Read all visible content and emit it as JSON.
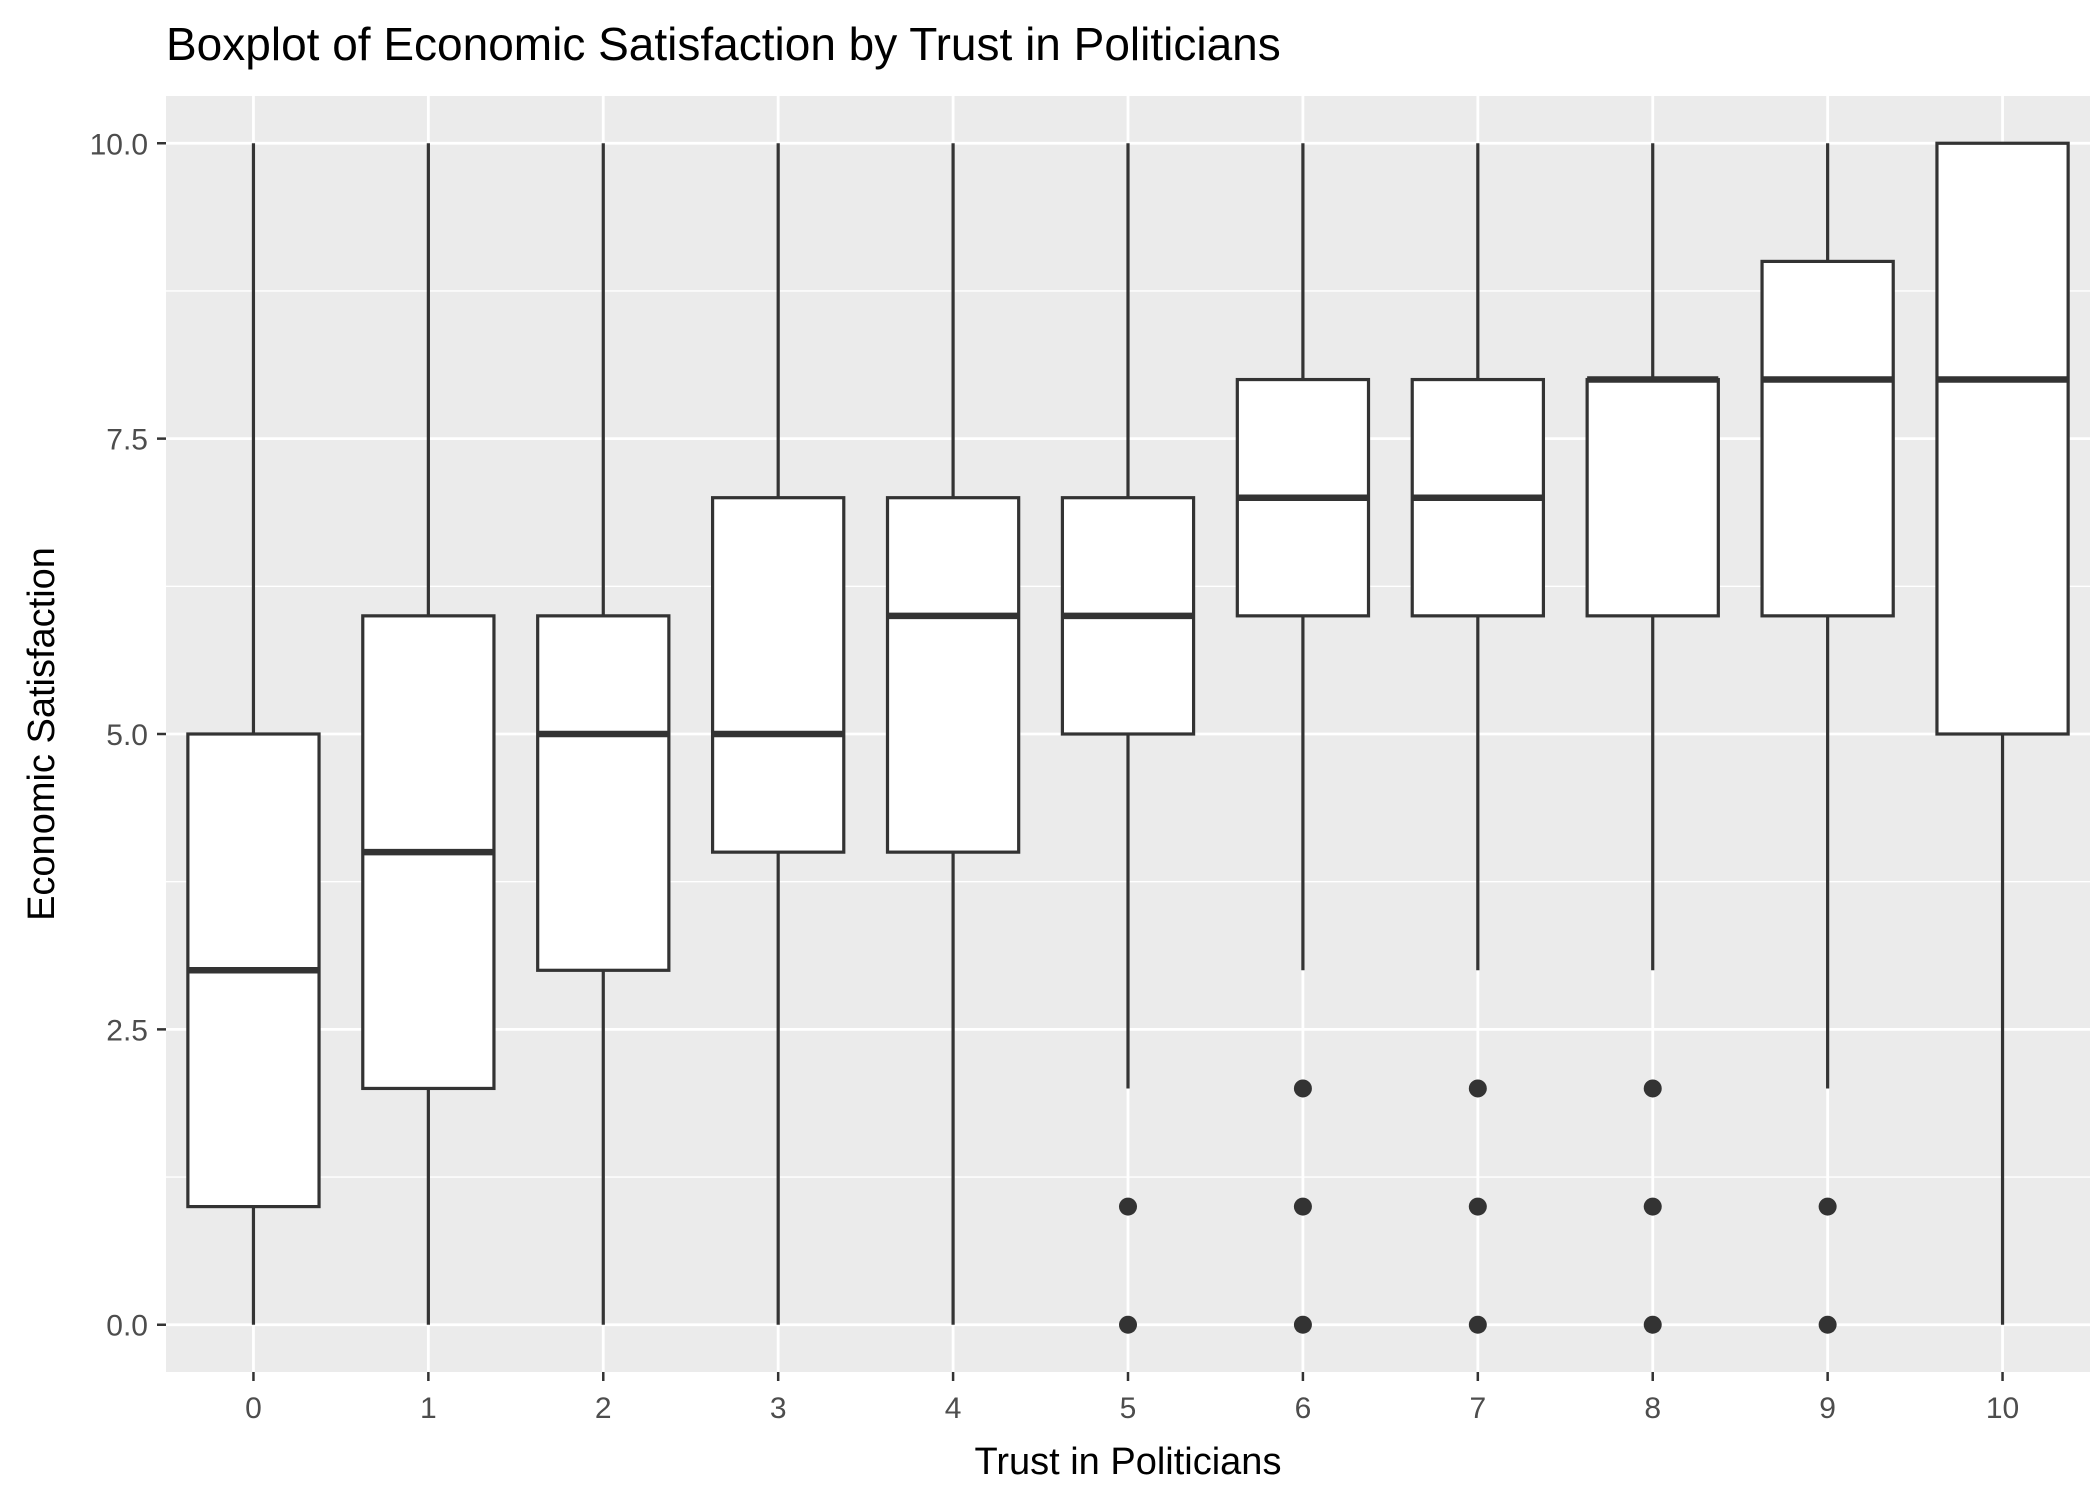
{
  "chart_data": {
    "type": "box",
    "title": "Boxplot of Economic Satisfaction by  Trust in Politicians",
    "xlabel": "Trust in Politicians",
    "ylabel": "Economic Satisfaction",
    "categories": [
      "0",
      "1",
      "2",
      "3",
      "4",
      "5",
      "6",
      "7",
      "8",
      "9",
      "10"
    ],
    "ylim": [
      -0.4,
      10.4
    ],
    "y_ticks": [
      0.0,
      2.5,
      5.0,
      7.5,
      10.0
    ],
    "y_tick_labels": [
      "0.0",
      "2.5",
      "5.0",
      "7.5",
      "10.0"
    ],
    "grid": true,
    "legend": "none",
    "colors": {
      "panel": "#ebebeb",
      "grid": "#ffffff",
      "box_fill": "#ffffff",
      "box_stroke": "#333333",
      "tick_text": "#4d4d4d",
      "tick_mark": "#333333"
    },
    "boxes": [
      {
        "category": "0",
        "whisker_low": 0,
        "q1": 1,
        "median": 3,
        "q3": 5,
        "whisker_high": 10,
        "outliers": []
      },
      {
        "category": "1",
        "whisker_low": 0,
        "q1": 2,
        "median": 4,
        "q3": 6,
        "whisker_high": 10,
        "outliers": []
      },
      {
        "category": "2",
        "whisker_low": 0,
        "q1": 3,
        "median": 5,
        "q3": 6,
        "whisker_high": 10,
        "outliers": []
      },
      {
        "category": "3",
        "whisker_low": 0,
        "q1": 4,
        "median": 5,
        "q3": 7,
        "whisker_high": 10,
        "outliers": []
      },
      {
        "category": "4",
        "whisker_low": 0,
        "q1": 4,
        "median": 6,
        "q3": 7,
        "whisker_high": 10,
        "outliers": []
      },
      {
        "category": "5",
        "whisker_low": 2,
        "q1": 5,
        "median": 6,
        "q3": 7,
        "whisker_high": 10,
        "outliers": [
          0,
          1
        ]
      },
      {
        "category": "6",
        "whisker_low": 3,
        "q1": 6,
        "median": 7,
        "q3": 8,
        "whisker_high": 10,
        "outliers": [
          0,
          1,
          2
        ]
      },
      {
        "category": "7",
        "whisker_low": 3,
        "q1": 6,
        "median": 7,
        "q3": 8,
        "whisker_high": 10,
        "outliers": [
          0,
          1,
          2
        ]
      },
      {
        "category": "8",
        "whisker_low": 3,
        "q1": 6,
        "median": 8,
        "q3": 8,
        "whisker_high": 10,
        "outliers": [
          0,
          1,
          2
        ]
      },
      {
        "category": "9",
        "whisker_low": 2,
        "q1": 6,
        "median": 8,
        "q3": 9,
        "whisker_high": 10,
        "outliers": [
          0,
          1
        ]
      },
      {
        "category": "10",
        "whisker_low": 0,
        "q1": 5,
        "median": 8,
        "q3": 10,
        "whisker_high": 10,
        "outliers": []
      }
    ]
  }
}
